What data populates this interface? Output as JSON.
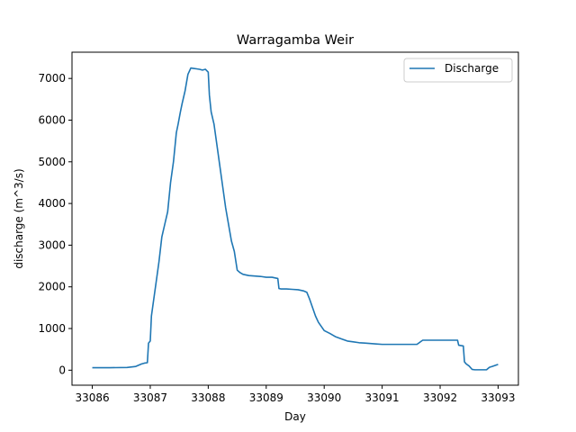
{
  "chart_data": {
    "type": "line",
    "title": "Warragamba Weir",
    "xlabel": "Day",
    "ylabel": "discharge (m^3/s)",
    "xlim": [
      33085.65,
      33093.35
    ],
    "ylim": [
      -360,
      7630
    ],
    "xticks": [
      33086,
      33087,
      33088,
      33089,
      33090,
      33091,
      33092,
      33093
    ],
    "yticks": [
      0,
      1000,
      2000,
      3000,
      4000,
      5000,
      6000,
      7000
    ],
    "grid": false,
    "legend_position": "top-right",
    "series": [
      {
        "name": "Discharge",
        "color": "#1f77b4",
        "x": [
          33086.0,
          33086.3,
          33086.6,
          33086.75,
          33086.85,
          33086.9,
          33086.95,
          33086.97,
          33087.0,
          33087.02,
          33087.05,
          33087.1,
          33087.15,
          33087.2,
          33087.25,
          33087.3,
          33087.35,
          33087.4,
          33087.45,
          33087.48,
          33087.52,
          33087.55,
          33087.6,
          33087.65,
          33087.7,
          33087.75,
          33087.8,
          33087.85,
          33087.9,
          33087.95,
          33088.0,
          33088.02,
          33088.05,
          33088.1,
          33088.15,
          33088.2,
          33088.25,
          33088.3,
          33088.35,
          33088.4,
          33088.45,
          33088.5,
          33088.55,
          33088.6,
          33088.7,
          33088.8,
          33088.9,
          33089.0,
          33089.1,
          33089.2,
          33089.22,
          33089.25,
          33089.35,
          33089.45,
          33089.55,
          33089.65,
          33089.7,
          33089.75,
          33089.8,
          33089.85,
          33089.9,
          33090.0,
          33090.1,
          33090.2,
          33090.3,
          33090.4,
          33090.5,
          33090.6,
          33090.7,
          33090.8,
          33090.9,
          33091.0,
          33091.2,
          33091.4,
          33091.6,
          33091.68,
          33091.7,
          33092.0,
          33092.3,
          33092.32,
          33092.4,
          33092.42,
          33092.45,
          33092.5,
          33092.55,
          33092.6,
          33092.7,
          33092.8,
          33092.85,
          33092.9,
          33093.0
        ],
        "y": [
          60,
          60,
          65,
          90,
          150,
          170,
          180,
          650,
          700,
          1300,
          1600,
          2100,
          2600,
          3200,
          3500,
          3800,
          4500,
          5000,
          5700,
          5900,
          6200,
          6400,
          6700,
          7100,
          7250,
          7240,
          7230,
          7220,
          7200,
          7220,
          7150,
          6600,
          6200,
          5900,
          5400,
          4900,
          4400,
          3900,
          3500,
          3100,
          2850,
          2400,
          2340,
          2300,
          2270,
          2260,
          2250,
          2230,
          2230,
          2200,
          1960,
          1950,
          1950,
          1940,
          1930,
          1900,
          1870,
          1700,
          1500,
          1300,
          1150,
          950,
          880,
          800,
          750,
          700,
          680,
          660,
          650,
          640,
          630,
          620,
          620,
          620,
          620,
          700,
          720,
          720,
          720,
          600,
          580,
          200,
          150,
          100,
          20,
          10,
          10,
          10,
          70,
          90,
          140
        ]
      }
    ]
  }
}
